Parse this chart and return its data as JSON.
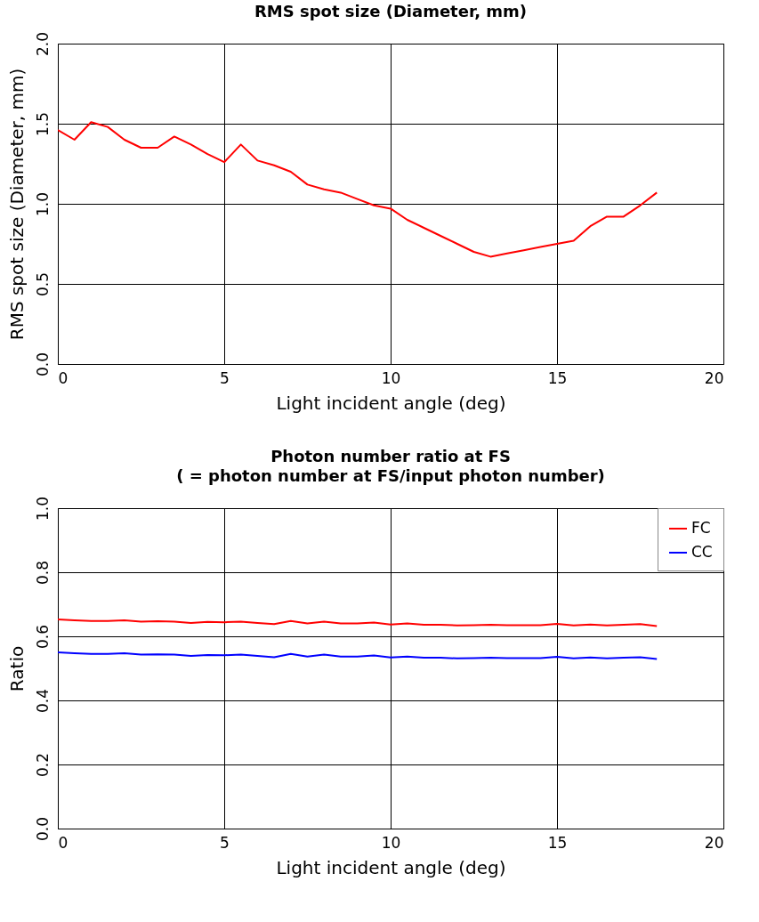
{
  "chart_data": [
    {
      "type": "line",
      "title": "RMS spot size (Diameter, mm)",
      "xlabel": "Light incident angle (deg)",
      "ylabel": "RMS spot size (Diameter, mm)",
      "x": [
        0,
        0.5,
        1,
        1.5,
        2,
        2.5,
        3,
        3.5,
        4,
        4.5,
        5,
        5.5,
        6,
        6.5,
        7,
        7.5,
        8,
        8.5,
        9,
        9.5,
        10,
        10.5,
        11,
        11.5,
        12,
        12.5,
        13,
        13.5,
        14,
        14.5,
        15,
        15.5,
        16,
        16.5,
        17,
        17.5,
        18
      ],
      "series": [
        {
          "color": "#ff0000",
          "values": [
            1.46,
            1.4,
            1.51,
            1.48,
            1.4,
            1.35,
            1.35,
            1.42,
            1.37,
            1.31,
            1.26,
            1.37,
            1.27,
            1.24,
            1.2,
            1.12,
            1.09,
            1.07,
            1.03,
            0.99,
            0.97,
            0.9,
            0.85,
            0.8,
            0.75,
            0.7,
            0.67,
            0.69,
            0.71,
            0.73,
            0.75,
            0.77,
            0.86,
            0.92,
            0.92,
            0.99,
            1.07
          ]
        }
      ],
      "xlim": [
        0,
        20
      ],
      "xticks": [
        0,
        5,
        10,
        15,
        20
      ],
      "ylim": [
        0,
        2
      ],
      "yticks": [
        {
          "value": 0,
          "label": "0.0"
        },
        0.5,
        {
          "value": 1,
          "label": "1.0"
        },
        1.5,
        {
          "value": 2,
          "label": "2.0"
        }
      ],
      "grid": true
    },
    {
      "type": "line",
      "title": "Photon number ratio at FS",
      "subtitle": "( = photon number at FS/input photon number)",
      "xlabel": "Light incident angle (deg)",
      "ylabel": "Ratio",
      "x": [
        0,
        0.5,
        1,
        1.5,
        2,
        2.5,
        3,
        3.5,
        4,
        4.5,
        5,
        5.5,
        6,
        6.5,
        7,
        7.5,
        8,
        8.5,
        9,
        9.5,
        10,
        10.5,
        11,
        11.5,
        12,
        12.5,
        13,
        13.5,
        14,
        14.5,
        15,
        15.5,
        16,
        16.5,
        17,
        17.5,
        18
      ],
      "series": [
        {
          "name": "FC",
          "color": "#ff0000",
          "values": [
            0.653,
            0.65,
            0.648,
            0.648,
            0.65,
            0.646,
            0.647,
            0.646,
            0.642,
            0.645,
            0.644,
            0.646,
            0.642,
            0.638,
            0.648,
            0.64,
            0.646,
            0.64,
            0.64,
            0.643,
            0.637,
            0.64,
            0.636,
            0.636,
            0.634,
            0.635,
            0.636,
            0.635,
            0.635,
            0.635,
            0.639,
            0.634,
            0.637,
            0.634,
            0.636,
            0.638,
            0.632
          ]
        },
        {
          "name": "CC",
          "color": "#0000ff",
          "values": [
            0.55,
            0.547,
            0.545,
            0.545,
            0.547,
            0.543,
            0.544,
            0.543,
            0.539,
            0.542,
            0.541,
            0.543,
            0.539,
            0.535,
            0.545,
            0.537,
            0.543,
            0.537,
            0.537,
            0.54,
            0.534,
            0.537,
            0.533,
            0.533,
            0.531,
            0.532,
            0.533,
            0.532,
            0.532,
            0.532,
            0.536,
            0.531,
            0.534,
            0.531,
            0.533,
            0.535,
            0.529
          ]
        }
      ],
      "xlim": [
        0,
        20
      ],
      "xticks": [
        0,
        5,
        10,
        15,
        20
      ],
      "ylim": [
        0,
        1
      ],
      "yticks": [
        {
          "value": 0,
          "label": "0.0"
        },
        0.2,
        0.4,
        0.6,
        0.8,
        {
          "value": 1,
          "label": "1.0"
        }
      ],
      "grid": true,
      "legend": "top right"
    }
  ]
}
